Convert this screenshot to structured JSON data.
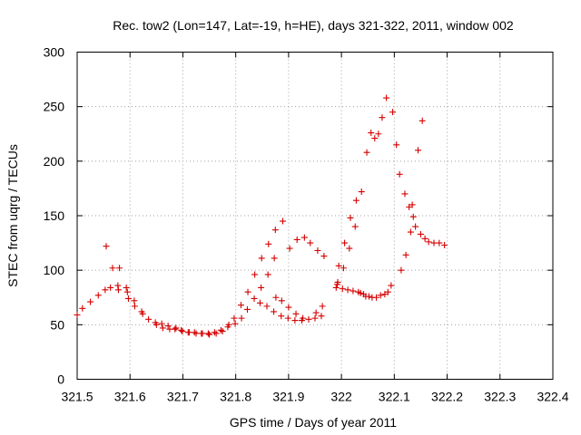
{
  "chart_data": {
    "type": "scatter",
    "title": "Rec. tow2 (Lon=147, Lat=-19, h=HE), days 321-322, 2011, window 002",
    "xlabel": "GPS time / Days of year 2011",
    "ylabel": "STEC from uqrg / TECUs",
    "xlim": [
      321.5,
      322.4
    ],
    "ylim": [
      0,
      300
    ],
    "x_ticks": [
      "321.5",
      "321.6",
      "321.7",
      "321.8",
      "321.9",
      "322",
      "322.1",
      "322.2",
      "322.3",
      "322.4"
    ],
    "y_ticks": [
      "0",
      "50",
      "100",
      "150",
      "200",
      "250",
      "300"
    ],
    "grid": true,
    "marker": "plus",
    "color": "#d40000",
    "points": [
      [
        321.5,
        59
      ],
      [
        321.51,
        65
      ],
      [
        321.525,
        71
      ],
      [
        321.54,
        77
      ],
      [
        321.553,
        82
      ],
      [
        321.555,
        122
      ],
      [
        321.563,
        84
      ],
      [
        321.567,
        102
      ],
      [
        321.577,
        86
      ],
      [
        321.578,
        82
      ],
      [
        321.58,
        102
      ],
      [
        321.593,
        84
      ],
      [
        321.595,
        80
      ],
      [
        321.597,
        74
      ],
      [
        321.608,
        72
      ],
      [
        321.609,
        67
      ],
      [
        321.622,
        62
      ],
      [
        321.624,
        60
      ],
      [
        321.635,
        55
      ],
      [
        321.648,
        52
      ],
      [
        321.65,
        50
      ],
      [
        321.66,
        51
      ],
      [
        321.662,
        47
      ],
      [
        321.672,
        49
      ],
      [
        321.675,
        46
      ],
      [
        321.685,
        46
      ],
      [
        321.687,
        47
      ],
      [
        321.697,
        45
      ],
      [
        321.699,
        44
      ],
      [
        321.71,
        43
      ],
      [
        321.712,
        43
      ],
      [
        321.722,
        43
      ],
      [
        321.725,
        42
      ],
      [
        321.735,
        42
      ],
      [
        321.737,
        42
      ],
      [
        321.748,
        42
      ],
      [
        321.75,
        41
      ],
      [
        321.76,
        43
      ],
      [
        321.763,
        42
      ],
      [
        321.772,
        45
      ],
      [
        321.775,
        44
      ],
      [
        321.785,
        48
      ],
      [
        321.787,
        50
      ],
      [
        321.797,
        56
      ],
      [
        321.799,
        51
      ],
      [
        321.81,
        68
      ],
      [
        321.811,
        56
      ],
      [
        321.822,
        64
      ],
      [
        321.823,
        80
      ],
      [
        321.835,
        74
      ],
      [
        321.836,
        96
      ],
      [
        321.846,
        70
      ],
      [
        321.848,
        84
      ],
      [
        321.849,
        111
      ],
      [
        321.859,
        67
      ],
      [
        321.861,
        96
      ],
      [
        321.862,
        124
      ],
      [
        321.872,
        62
      ],
      [
        321.873,
        111
      ],
      [
        321.875,
        137
      ],
      [
        321.876,
        75
      ],
      [
        321.886,
        58
      ],
      [
        321.887,
        72
      ],
      [
        321.889,
        145
      ],
      [
        321.899,
        56
      ],
      [
        321.9,
        66
      ],
      [
        321.902,
        120
      ],
      [
        321.912,
        54
      ],
      [
        321.914,
        60
      ],
      [
        321.916,
        128
      ],
      [
        321.925,
        54
      ],
      [
        321.927,
        56
      ],
      [
        321.93,
        130
      ],
      [
        321.938,
        55
      ],
      [
        321.941,
        125
      ],
      [
        321.95,
        56
      ],
      [
        321.952,
        61
      ],
      [
        321.955,
        118
      ],
      [
        321.962,
        58
      ],
      [
        321.964,
        67
      ],
      [
        321.967,
        113
      ],
      [
        321.99,
        84
      ],
      [
        321.992,
        87
      ],
      [
        321.993,
        89
      ],
      [
        321.995,
        104
      ],
      [
        322.002,
        83
      ],
      [
        322.004,
        102
      ],
      [
        322.006,
        125
      ],
      [
        322.012,
        82
      ],
      [
        322.015,
        120
      ],
      [
        322.017,
        148
      ],
      [
        322.022,
        81
      ],
      [
        322.026,
        140
      ],
      [
        322.028,
        164
      ],
      [
        322.032,
        80
      ],
      [
        322.036,
        79
      ],
      [
        322.038,
        172
      ],
      [
        322.042,
        78
      ],
      [
        322.046,
        76
      ],
      [
        322.048,
        208
      ],
      [
        322.052,
        76
      ],
      [
        322.056,
        226
      ],
      [
        322.058,
        75
      ],
      [
        322.063,
        221
      ],
      [
        322.066,
        75
      ],
      [
        322.07,
        225
      ],
      [
        322.074,
        77
      ],
      [
        322.077,
        240
      ],
      [
        322.082,
        78
      ],
      [
        322.085,
        258
      ],
      [
        322.088,
        80
      ],
      [
        322.094,
        86
      ],
      [
        322.097,
        245
      ],
      [
        322.104,
        215
      ],
      [
        322.11,
        188
      ],
      [
        322.113,
        100
      ],
      [
        322.12,
        170
      ],
      [
        322.122,
        114
      ],
      [
        322.128,
        158
      ],
      [
        322.131,
        135
      ],
      [
        322.134,
        160
      ],
      [
        322.136,
        149
      ],
      [
        322.14,
        140
      ],
      [
        322.145,
        210
      ],
      [
        322.15,
        133
      ],
      [
        322.153,
        237
      ],
      [
        322.158,
        129
      ],
      [
        322.165,
        126
      ],
      [
        322.175,
        125
      ],
      [
        322.185,
        125
      ],
      [
        322.195,
        123
      ]
    ]
  }
}
